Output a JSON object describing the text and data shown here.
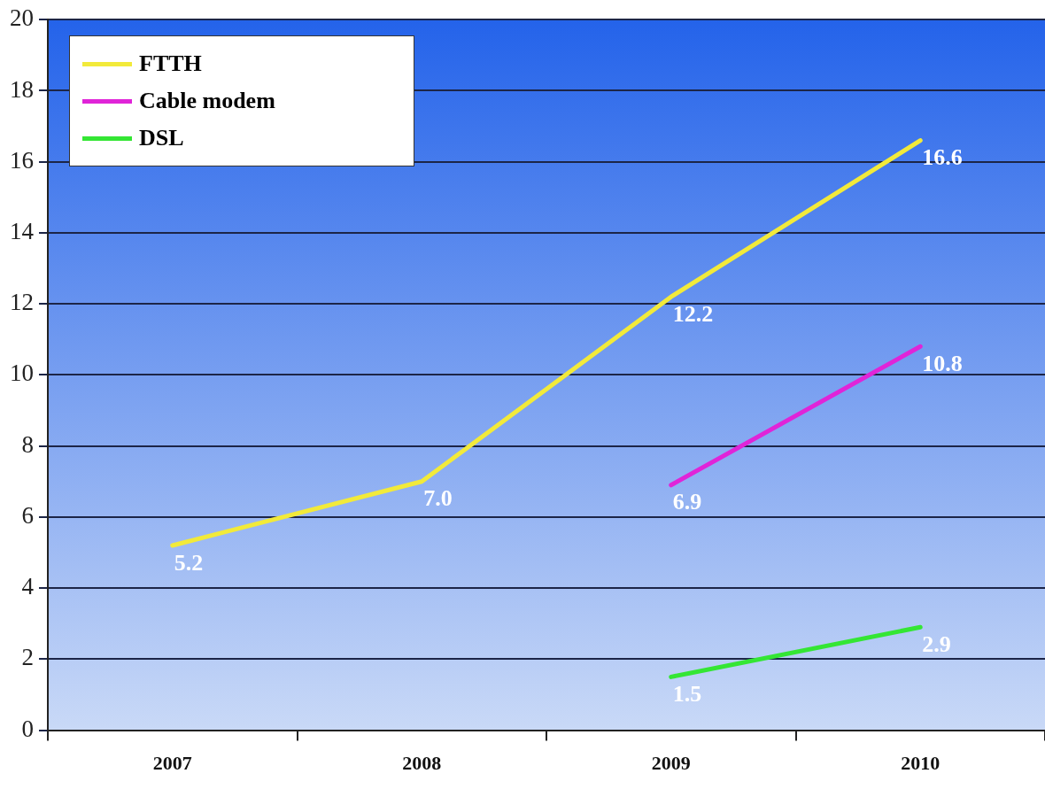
{
  "chart_data": {
    "type": "line",
    "categories": [
      "2007",
      "2008",
      "2009",
      "2010"
    ],
    "series": [
      {
        "name": "FTTH",
        "color": "#f2ea3a",
        "values": [
          5.2,
          7.0,
          12.2,
          16.6
        ],
        "value_labels": [
          "5.2",
          "7.0",
          "12.2",
          "16.6"
        ]
      },
      {
        "name": "Cable modem",
        "color": "#e024d8",
        "values": [
          null,
          null,
          6.9,
          10.8
        ],
        "value_labels": [
          null,
          null,
          "6.9",
          "10.8"
        ]
      },
      {
        "name": "DSL",
        "color": "#34e634",
        "values": [
          null,
          null,
          1.5,
          2.9
        ],
        "value_labels": [
          null,
          null,
          "1.5",
          "2.9"
        ]
      }
    ],
    "ylim": [
      0,
      20
    ],
    "yticks": [
      0,
      2,
      4,
      6,
      8,
      10,
      12,
      14,
      16,
      18,
      20
    ],
    "grid": "y",
    "legend": "top left",
    "marker": "none",
    "line_style": "solid"
  }
}
